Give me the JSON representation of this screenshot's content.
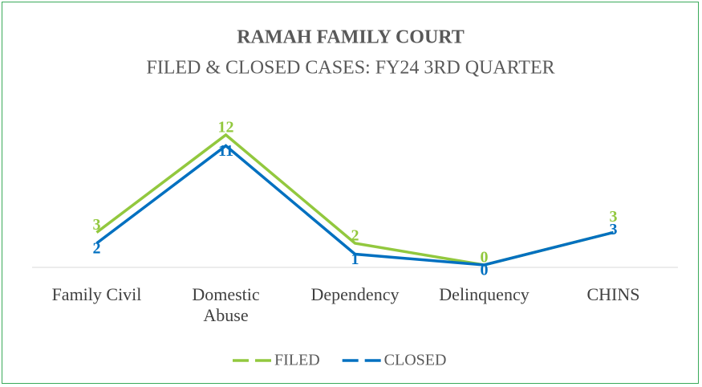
{
  "chart_data": {
    "type": "line",
    "title": "RAMAH FAMILY COURT",
    "subtitle": "FILED & CLOSED CASES: FY24 3RD QUARTER",
    "categories": [
      "Family Civil",
      "Domestic Abuse",
      "Dependency",
      "Delinquency",
      "CHINS"
    ],
    "series": [
      {
        "name": "FILED",
        "color": "#92c83e",
        "values": [
          3,
          12,
          2,
          0,
          3
        ]
      },
      {
        "name": "CLOSED",
        "color": "#0070c0",
        "values": [
          2,
          11,
          1,
          0,
          3
        ]
      }
    ],
    "legend": "bottom"
  }
}
